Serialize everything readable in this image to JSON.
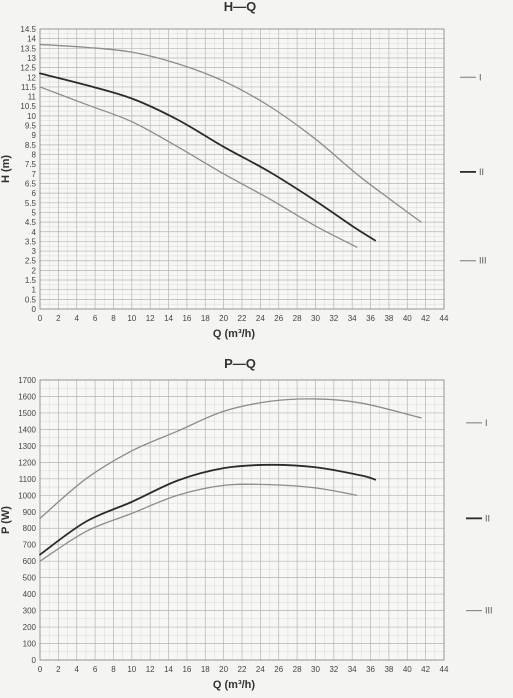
{
  "chart_data": [
    {
      "type": "line",
      "title": "H—Q",
      "xlabel": "Q (m³/h)",
      "ylabel": "H (m)",
      "xlim": [
        0,
        44
      ],
      "ylim": [
        0,
        14.5
      ],
      "xticks": [
        0,
        2,
        4,
        6,
        8,
        10,
        12,
        14,
        16,
        18,
        20,
        22,
        24,
        26,
        28,
        30,
        32,
        34,
        36,
        38,
        40,
        42,
        44
      ],
      "xtick_labels": [
        "0",
        "2",
        "4",
        "6",
        "8",
        "10",
        "12",
        "14",
        "16",
        "18",
        "20",
        "22",
        "24",
        "26",
        "28",
        "30",
        "32",
        "34",
        "36",
        "38",
        "40",
        "42",
        "44"
      ],
      "yticks": [
        0,
        0.5,
        1,
        1.5,
        2,
        2.5,
        3,
        3.5,
        4,
        4.5,
        5,
        5.5,
        6,
        6.5,
        7,
        7.5,
        8,
        8.5,
        9,
        9.5,
        10,
        10.5,
        11,
        11.5,
        12,
        12.5,
        13,
        13.5,
        14,
        14.5
      ],
      "ytick_labels": [
        "0",
        "0.5",
        "1",
        "1.5",
        "2",
        "2.5",
        "3",
        "3.5",
        "4",
        "4.5",
        "5",
        "5.5",
        "6",
        "6.5",
        "7",
        "7.5",
        "8",
        "8.5",
        "9",
        "9.5",
        "10",
        "10.5",
        "11",
        "11.5",
        "12",
        "12.5",
        "13",
        "13.5",
        "14",
        "14.5"
      ],
      "grid": true,
      "legend_position": "right",
      "series": [
        {
          "name": "I",
          "color": "#8c8c8c",
          "x": [
            0,
            5,
            10,
            15,
            20,
            25,
            30,
            35,
            41.5
          ],
          "y": [
            13.7,
            13.55,
            13.3,
            12.7,
            11.8,
            10.5,
            8.8,
            6.8,
            4.5
          ],
          "legend_y": 12.0
        },
        {
          "name": "II",
          "color": "#2b2b2b",
          "x": [
            0,
            5,
            10,
            15,
            20,
            25,
            30,
            34,
            36.5
          ],
          "y": [
            12.2,
            11.6,
            10.9,
            9.8,
            8.4,
            7.1,
            5.6,
            4.3,
            3.55
          ],
          "legend_y": 7.1
        },
        {
          "name": "III",
          "color": "#8c8c8c",
          "x": [
            0,
            5,
            10,
            15,
            20,
            25,
            30,
            34.5
          ],
          "y": [
            11.5,
            10.6,
            9.7,
            8.4,
            7.0,
            5.7,
            4.3,
            3.2
          ],
          "legend_y": 2.5
        }
      ]
    },
    {
      "type": "line",
      "title": "P—Q",
      "xlabel": "Q (m³/h)",
      "ylabel": "P (W)",
      "xlim": [
        0,
        44
      ],
      "ylim": [
        0,
        1700
      ],
      "xticks": [
        0,
        2,
        4,
        6,
        8,
        10,
        12,
        14,
        16,
        18,
        20,
        22,
        24,
        26,
        28,
        30,
        32,
        34,
        36,
        38,
        40,
        42,
        44
      ],
      "xtick_labels": [
        "0",
        "2",
        "4",
        "6",
        "8",
        "10",
        "12",
        "14",
        "16",
        "18",
        "20",
        "22",
        "24",
        "26",
        "28",
        "30",
        "32",
        "34",
        "36",
        "38",
        "40",
        "42",
        "44"
      ],
      "yticks": [
        0,
        100,
        200,
        300,
        400,
        500,
        600,
        700,
        800,
        900,
        1000,
        1100,
        1200,
        1300,
        1400,
        1500,
        1600,
        1700
      ],
      "ytick_labels": [
        "0",
        "100",
        "200",
        "300",
        "400",
        "500",
        "600",
        "700",
        "800",
        "900",
        "1000",
        "1100",
        "1200",
        "1300",
        "1400",
        "1500",
        "1600",
        "1700"
      ],
      "grid": true,
      "legend_position": "right",
      "series": [
        {
          "name": "I",
          "color": "#8c8c8c",
          "x": [
            0,
            5,
            10,
            15,
            20,
            25,
            30,
            35,
            41.5
          ],
          "y": [
            860,
            1100,
            1270,
            1390,
            1510,
            1570,
            1585,
            1560,
            1470
          ],
          "legend_y": 1440
        },
        {
          "name": "II",
          "color": "#2b2b2b",
          "x": [
            0,
            5,
            10,
            15,
            20,
            25,
            30,
            35,
            36.5
          ],
          "y": [
            640,
            840,
            960,
            1090,
            1165,
            1185,
            1170,
            1120,
            1095
          ],
          "legend_y": 860
        },
        {
          "name": "III",
          "color": "#8c8c8c",
          "x": [
            0,
            5,
            10,
            15,
            20,
            25,
            30,
            34.5
          ],
          "y": [
            600,
            780,
            890,
            1000,
            1060,
            1065,
            1045,
            1000
          ],
          "legend_y": 300
        }
      ]
    }
  ]
}
